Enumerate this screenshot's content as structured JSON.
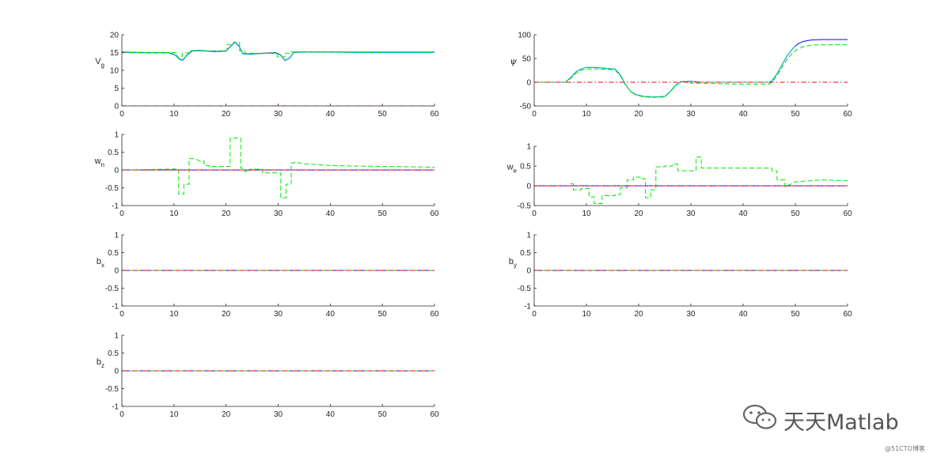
{
  "chart_data": [
    {
      "id": "Vg",
      "type": "line",
      "ylabel": {
        "main": "V",
        "sub": "g"
      },
      "xlim": [
        0,
        60
      ],
      "ylim": [
        0,
        20
      ],
      "xticks": [
        0,
        10,
        20,
        30,
        40,
        50,
        60
      ],
      "yticks": [
        0,
        5,
        10,
        15,
        20
      ],
      "series": [
        {
          "color": "#0000ff",
          "style": "solid",
          "x": [
            0,
            5,
            9,
            10.2,
            11,
            11.7,
            12.5,
            13.5,
            15,
            18,
            20,
            21,
            21.7,
            22.5,
            23.2,
            24.5,
            27,
            29.5,
            30.5,
            31.3,
            32.2,
            33,
            35,
            40,
            45,
            50,
            55,
            60
          ],
          "y": [
            15.1,
            15.0,
            15.0,
            14.4,
            13.2,
            12.9,
            14.3,
            15.5,
            15.6,
            15.3,
            15.5,
            17.0,
            18.0,
            16.8,
            14.7,
            14.6,
            14.8,
            15.0,
            14.3,
            12.8,
            13.5,
            15.1,
            15.2,
            15.2,
            15.1,
            15.1,
            15.1,
            15.1
          ]
        },
        {
          "color": "#00bfbf",
          "style": "solid",
          "x": [
            0,
            5,
            9,
            10.2,
            11,
            11.7,
            12.5,
            13.5,
            15,
            18,
            20,
            21,
            21.7,
            22.5,
            23.2,
            24.5,
            27,
            29.5,
            30.5,
            31.3,
            32.2,
            33,
            35,
            40,
            45,
            50,
            55,
            60
          ],
          "y": [
            15.0,
            14.9,
            14.9,
            14.3,
            13.1,
            12.8,
            14.2,
            15.4,
            15.5,
            15.2,
            15.4,
            16.9,
            17.9,
            16.7,
            14.6,
            14.5,
            14.7,
            14.9,
            14.2,
            12.7,
            13.4,
            15.0,
            15.1,
            15.1,
            15.0,
            15.0,
            15.0,
            15.0
          ]
        },
        {
          "color": "#00e600",
          "style": "dashed",
          "x": [
            0,
            9,
            9,
            10.6,
            10.6,
            11.6,
            11.6,
            12.8,
            12.8,
            20.2,
            20.2,
            21.4,
            21.4,
            22.6,
            22.6,
            23.6,
            23.6,
            29.8,
            29.8,
            31.3,
            31.3,
            32.4,
            32.4,
            60
          ],
          "y": [
            15.0,
            15.0,
            15.0,
            15.0,
            13.8,
            13.8,
            14.9,
            14.9,
            15.5,
            15.5,
            17.3,
            17.3,
            17.8,
            17.8,
            15.5,
            15.5,
            14.8,
            14.8,
            13.8,
            13.8,
            14.8,
            14.8,
            15.2,
            15.2
          ]
        },
        {
          "color": "#ff0000",
          "style": "dashdot",
          "x": [
            0,
            60
          ],
          "y": [
            0,
            0
          ]
        }
      ]
    },
    {
      "id": "psi",
      "type": "line",
      "ylabel": {
        "main": "ψ",
        "sub": ""
      },
      "xlim": [
        0,
        60
      ],
      "ylim": [
        -50,
        100
      ],
      "xticks": [
        0,
        10,
        20,
        30,
        40,
        50,
        60
      ],
      "yticks": [
        -50,
        0,
        50,
        100
      ],
      "series": [
        {
          "color": "#0000ff",
          "style": "solid",
          "x": [
            0,
            6,
            7,
            8,
            9,
            10,
            12,
            14,
            15.5,
            16.5,
            17.5,
            18.5,
            19.5,
            21,
            23,
            25,
            26,
            27,
            28,
            30,
            32,
            35,
            40,
            45,
            45.5,
            46.5,
            47.5,
            48.5,
            49.5,
            50.5,
            51.5,
            53,
            55,
            58,
            60
          ],
          "y": [
            0,
            0,
            10,
            22,
            28,
            31,
            31,
            29,
            28,
            15,
            -5,
            -20,
            -26,
            -30,
            -31,
            -30,
            -20,
            -7,
            1,
            2,
            0,
            0,
            0,
            0,
            3,
            18,
            38,
            57,
            71,
            81,
            86,
            89,
            90,
            90,
            90
          ]
        },
        {
          "color": "#00bfbf",
          "style": "solid",
          "x": [
            0,
            6,
            7,
            8,
            9,
            10,
            12,
            14,
            15.5,
            16.5,
            17.5,
            18.5,
            19.5,
            21,
            23,
            25,
            26,
            27,
            28,
            30,
            32,
            35,
            40,
            45,
            45.5,
            46.5,
            47.5,
            48.5,
            49.5,
            50
          ],
          "y": [
            0,
            0,
            10,
            22,
            28,
            31,
            31,
            29,
            28,
            15,
            -5,
            -20,
            -26,
            -30,
            -31,
            -30,
            -20,
            -7,
            1,
            2,
            0,
            0,
            0,
            0,
            3,
            18,
            38,
            57,
            71,
            76
          ]
        },
        {
          "color": "#00e600",
          "style": "dashed",
          "x": [
            0,
            6,
            7,
            8,
            9,
            10,
            12,
            14,
            15.5,
            16.5,
            17.5,
            18.5,
            19.5,
            21,
            23,
            25,
            26,
            27,
            28,
            29,
            30,
            35,
            40,
            45,
            45.5,
            46.5,
            47.5,
            48.5,
            49.5,
            50.5,
            51.5,
            53,
            55,
            58,
            60
          ],
          "y": [
            0,
            0,
            8,
            19,
            25,
            28,
            28,
            27,
            26,
            13,
            -6,
            -20,
            -27,
            -31,
            -32,
            -31,
            -21,
            -8,
            0,
            1,
            -2,
            -3,
            -4,
            -4,
            0,
            14,
            32,
            50,
            62,
            70,
            75,
            78,
            79,
            79,
            79
          ]
        },
        {
          "color": "#ff0000",
          "style": "dashdot",
          "x": [
            0,
            60
          ],
          "y": [
            0,
            0
          ]
        }
      ]
    },
    {
      "id": "wn",
      "type": "line",
      "ylabel": {
        "main": "w",
        "sub": "n"
      },
      "xlim": [
        0,
        60
      ],
      "ylim": [
        -1,
        1
      ],
      "xticks": [
        0,
        10,
        20,
        30,
        40,
        50,
        60
      ],
      "yticks": [
        -1,
        -0.5,
        0,
        0.5,
        1
      ],
      "series": [
        {
          "color": "#0000ff",
          "style": "solid",
          "x": [
            0,
            60
          ],
          "y": [
            0,
            0
          ]
        },
        {
          "color": "#00e600",
          "style": "dashed",
          "x": [
            0,
            5,
            10.5,
            10.9,
            10.9,
            11.9,
            11.9,
            12.9,
            12.9,
            14,
            15,
            15.8,
            15.8,
            16.8,
            16.8,
            20.8,
            20.8,
            22.8,
            22.8,
            23.5,
            23.5,
            24.5,
            24.5,
            27,
            27,
            30.5,
            30.5,
            31.5,
            31.5,
            32.5,
            32.5,
            33.2,
            33.2,
            35,
            40,
            45,
            50,
            55,
            60
          ],
          "y": [
            0,
            0.01,
            0.03,
            0.03,
            -0.68,
            -0.68,
            -0.4,
            -0.4,
            0.32,
            0.32,
            0.25,
            0.25,
            0.12,
            0.12,
            0.1,
            0.1,
            0.9,
            0.9,
            0.05,
            0.05,
            -0.04,
            -0.04,
            0.02,
            0.02,
            -0.08,
            -0.08,
            -0.78,
            -0.78,
            -0.4,
            -0.4,
            0.2,
            0.2,
            0.22,
            0.17,
            0.13,
            0.11,
            0.1,
            0.09,
            0.08
          ]
        },
        {
          "color": "#ff0000",
          "style": "dashdot",
          "x": [
            0,
            60
          ],
          "y": [
            0,
            0
          ]
        }
      ]
    },
    {
      "id": "we",
      "type": "line",
      "ylabel": {
        "main": "w",
        "sub": "e"
      },
      "xlim": [
        0,
        60
      ],
      "ylim": [
        -0.5,
        1
      ],
      "xticks": [
        0,
        10,
        20,
        30,
        40,
        50,
        60
      ],
      "yticks": [
        -0.5,
        0,
        0.5,
        1
      ],
      "series": [
        {
          "color": "#0000ff",
          "style": "solid",
          "x": [
            0,
            60
          ],
          "y": [
            0,
            0
          ]
        },
        {
          "color": "#00e600",
          "style": "dashed",
          "x": [
            7,
            7.5,
            7.5,
            9,
            9,
            10.5,
            10.5,
            11.5,
            11.5,
            13,
            13,
            15.5,
            15.5,
            16.5,
            16.5,
            17.8,
            17.8,
            19,
            19,
            20.3,
            20.3,
            21.3,
            21.3,
            22.3,
            22.3,
            23.3,
            23.3,
            25,
            25,
            26.5,
            26.5,
            27.5,
            27.5,
            31,
            31,
            32,
            32,
            40,
            45.5,
            45.5,
            46.5,
            46.5,
            48,
            48,
            50,
            55,
            60
          ],
          "y": [
            0.05,
            0.05,
            -0.1,
            -0.1,
            -0.07,
            -0.07,
            -0.28,
            -0.28,
            -0.45,
            -0.45,
            -0.25,
            -0.25,
            -0.22,
            -0.22,
            -0.05,
            -0.05,
            0.15,
            0.15,
            0.22,
            0.22,
            0.18,
            0.18,
            -0.3,
            -0.3,
            -0.1,
            -0.1,
            0.48,
            0.48,
            0.5,
            0.5,
            0.55,
            0.55,
            0.38,
            0.38,
            0.73,
            0.73,
            0.45,
            0.45,
            0.45,
            0.38,
            0.38,
            0.15,
            0.15,
            -0.03,
            0.1,
            0.15,
            0.13
          ]
        },
        {
          "color": "#ff0000",
          "style": "dashdot",
          "x": [
            0,
            60
          ],
          "y": [
            0,
            0
          ]
        }
      ]
    },
    {
      "id": "bx",
      "type": "line",
      "ylabel": {
        "main": "b",
        "sub": "x"
      },
      "xlim": [
        0,
        60
      ],
      "ylim": [
        -1,
        1
      ],
      "xticks": [
        0,
        10,
        20,
        30,
        40,
        50,
        60
      ],
      "yticks": [
        -1,
        -0.5,
        0,
        0.5,
        1
      ],
      "series": [
        {
          "color": "#0000ff",
          "style": "solid",
          "x": [
            0,
            60
          ],
          "y": [
            0,
            0
          ]
        },
        {
          "color": "#00e600",
          "style": "dashed",
          "x": [
            0,
            60
          ],
          "y": [
            0,
            0
          ]
        },
        {
          "color": "#ff0000",
          "style": "dashdot",
          "x": [
            0,
            60
          ],
          "y": [
            0,
            0
          ]
        }
      ]
    },
    {
      "id": "by",
      "type": "line",
      "ylabel": {
        "main": "b",
        "sub": "y"
      },
      "xlim": [
        0,
        60
      ],
      "ylim": [
        -1,
        1
      ],
      "xticks": [
        0,
        10,
        20,
        30,
        40,
        50,
        60
      ],
      "yticks": [
        -1,
        -0.5,
        0,
        0.5,
        1
      ],
      "series": [
        {
          "color": "#0000ff",
          "style": "solid",
          "x": [
            0,
            60
          ],
          "y": [
            0,
            0
          ]
        },
        {
          "color": "#00e600",
          "style": "dashed",
          "x": [
            0,
            60
          ],
          "y": [
            0,
            0
          ]
        },
        {
          "color": "#ff0000",
          "style": "dashdot",
          "x": [
            0,
            60
          ],
          "y": [
            0,
            0
          ]
        }
      ]
    },
    {
      "id": "bz",
      "type": "line",
      "ylabel": {
        "main": "b",
        "sub": "z"
      },
      "xlim": [
        0,
        60
      ],
      "ylim": [
        -1,
        1
      ],
      "xticks": [
        0,
        10,
        20,
        30,
        40,
        50,
        60
      ],
      "yticks": [
        -1,
        -0.5,
        0,
        0.5,
        1
      ],
      "series": [
        {
          "color": "#0000ff",
          "style": "solid",
          "x": [
            0,
            60
          ],
          "y": [
            0,
            0
          ]
        },
        {
          "color": "#00e600",
          "style": "dashed",
          "x": [
            0,
            60
          ],
          "y": [
            0,
            0
          ]
        },
        {
          "color": "#ff0000",
          "style": "dashdot",
          "x": [
            0,
            60
          ],
          "y": [
            0,
            0
          ]
        }
      ]
    }
  ],
  "watermark": {
    "text": "天天Matlab",
    "icon": "wechat-icon"
  },
  "corner_mark": "@51CTO博客"
}
